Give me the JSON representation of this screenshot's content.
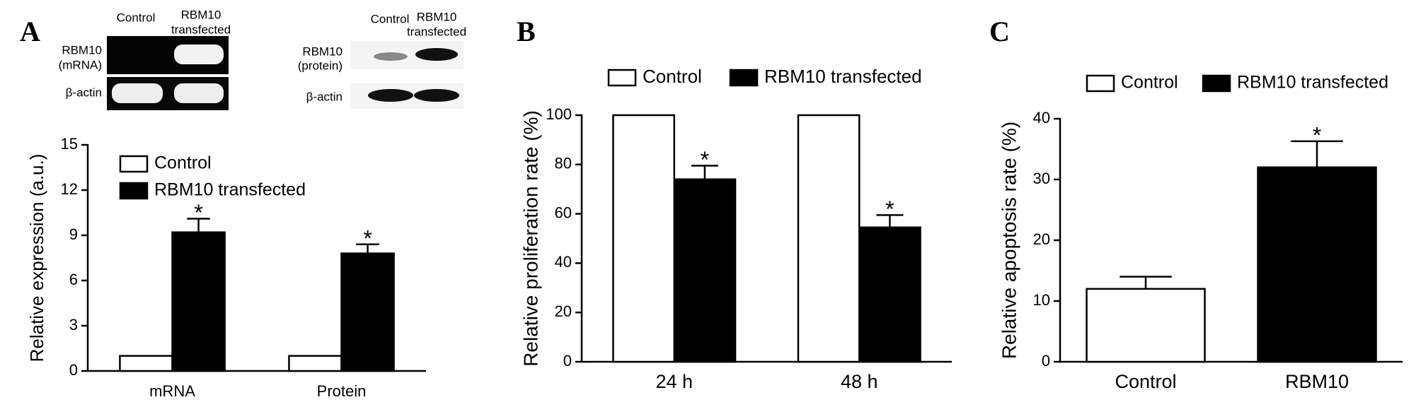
{
  "panels": [
    "A",
    "B",
    "C"
  ],
  "blots": {
    "left": {
      "columns": [
        "Control",
        [
          "RBM10",
          "transfected"
        ]
      ],
      "rows": [
        [
          "RBM10",
          "(mRNA)"
        ],
        "β-actin"
      ]
    },
    "right": {
      "columns": [
        "Control",
        [
          "RBM10",
          "transfected"
        ]
      ],
      "rows": [
        [
          "RBM10",
          "(protein)"
        ],
        "β-actin"
      ]
    }
  },
  "chart_data": [
    {
      "type": "bar",
      "ylabel": "Relative expression (a.u.)",
      "categories": [
        "mRNA",
        "Protein"
      ],
      "series": [
        {
          "name": "Control",
          "color": "#ffffff",
          "values": [
            1,
            1
          ]
        },
        {
          "name": "RBM10 transfected",
          "color": "#000000",
          "values": [
            9.2,
            7.8
          ],
          "errors": [
            0.9,
            0.6
          ],
          "markers": [
            "*",
            "*"
          ]
        }
      ],
      "ylim": [
        0,
        15
      ],
      "yticks": [
        0,
        3,
        6,
        9,
        12,
        15
      ],
      "legend": "upper left"
    },
    {
      "type": "bar",
      "ylabel": "Relative proliferation rate (%)",
      "categories": [
        "24 h",
        "48 h"
      ],
      "series": [
        {
          "name": "Control",
          "color": "#ffffff",
          "values": [
            100,
            100
          ]
        },
        {
          "name": "RBM10 transfected",
          "color": "#000000",
          "values": [
            74,
            54.5
          ],
          "errors": [
            5.5,
            5
          ],
          "markers": [
            "*",
            "*"
          ]
        }
      ],
      "ylim": [
        0,
        100
      ],
      "yticks": [
        0,
        20,
        40,
        60,
        80,
        100
      ],
      "legend": "top"
    },
    {
      "type": "bar",
      "ylabel": "Relative apoptosis rate (%)",
      "categories": [
        "Control",
        "RBM10"
      ],
      "values": [
        12,
        32
      ],
      "errors": [
        2,
        4.3
      ],
      "markers": [
        null,
        "*"
      ],
      "colors": [
        "#ffffff",
        "#000000"
      ],
      "legend_labels": [
        "Control",
        "RBM10 transfected"
      ],
      "ylim": [
        0,
        40
      ],
      "yticks": [
        0,
        10,
        20,
        30,
        40
      ],
      "legend": "top"
    }
  ]
}
